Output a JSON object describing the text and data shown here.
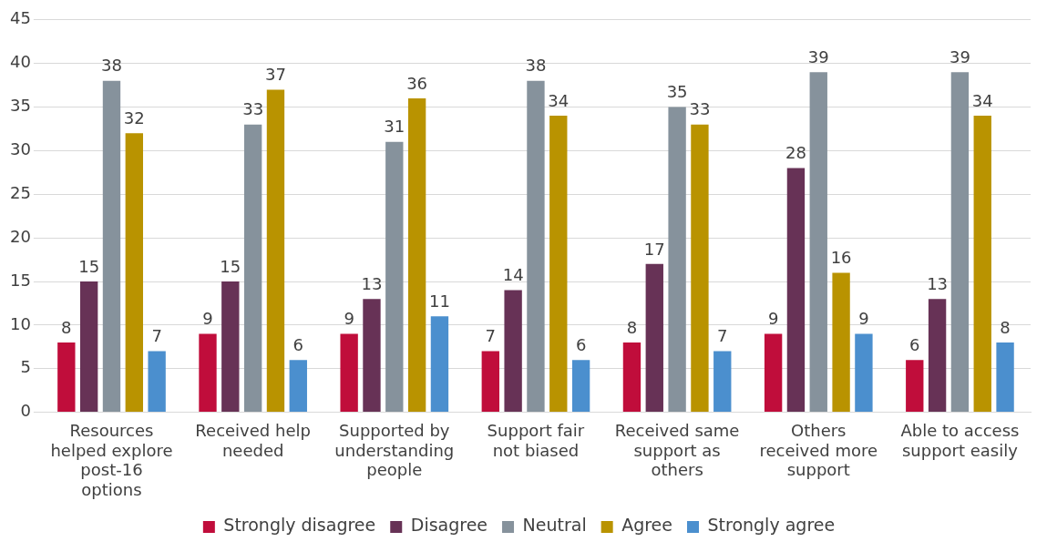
{
  "chart_data": {
    "type": "bar",
    "categories": [
      [
        "Resources",
        "helped explore",
        "post-16",
        "options"
      ],
      [
        "Received help",
        "needed"
      ],
      [
        "Supported by",
        "understanding",
        "people"
      ],
      [
        "Support fair",
        "not biased"
      ],
      [
        "Received same",
        "support as",
        "others"
      ],
      [
        "Others",
        "received more",
        "support"
      ],
      [
        "Able to access",
        "support easily"
      ]
    ],
    "series": [
      {
        "name": "Strongly disagree",
        "color": "#c00d3b",
        "values": [
          8,
          9,
          9,
          7,
          8,
          9,
          6
        ]
      },
      {
        "name": "Disagree",
        "color": "#673256",
        "values": [
          15,
          15,
          13,
          14,
          17,
          28,
          13
        ]
      },
      {
        "name": "Neutral",
        "color": "#86929c",
        "values": [
          38,
          33,
          31,
          38,
          35,
          39,
          39
        ]
      },
      {
        "name": "Agree",
        "color": "#b99300",
        "values": [
          32,
          37,
          36,
          34,
          33,
          16,
          34
        ]
      },
      {
        "name": "Strongly agree",
        "color": "#4b8fce",
        "values": [
          7,
          6,
          11,
          6,
          7,
          9,
          8
        ]
      }
    ],
    "ylim": [
      0,
      45
    ],
    "yticks": [
      0,
      5,
      10,
      15,
      20,
      25,
      30,
      35,
      40,
      45
    ],
    "grid": "y",
    "legend": "bottom",
    "data_labels": true
  }
}
